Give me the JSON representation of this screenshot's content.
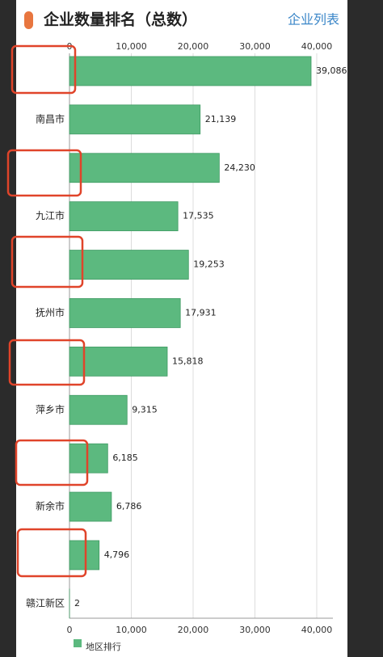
{
  "header_link": "企业列表",
  "chart_data": {
    "type": "hbar",
    "title": "企业数量排名（总数）",
    "categories": [
      null,
      "南昌市",
      null,
      "九江市",
      null,
      "抚州市",
      null,
      "萍乡市",
      null,
      "新余市",
      null,
      "赣江新区"
    ],
    "series": [
      {
        "name": "地区排行",
        "color": "#5cb97f",
        "values": [
          39086,
          21139,
          24230,
          17535,
          19253,
          17931,
          15818,
          9315,
          6185,
          6786,
          4796,
          2
        ],
        "value_labels": [
          "39,086",
          "21,139",
          "24,230",
          "17,535",
          "19,253",
          "17,931",
          "15,818",
          "9,315",
          "6,185",
          "6,786",
          "4,796",
          "2"
        ]
      }
    ],
    "xlim": [
      0,
      40000
    ],
    "xticks": [
      0,
      {
        "value": 10000,
        "label": "10,000"
      },
      {
        "value": 20000,
        "label": "20,000"
      },
      {
        "value": 30000,
        "label": "30,000"
      },
      {
        "value": 40000,
        "label": "40,000"
      }
    ],
    "grid": true,
    "legend": "bottom-left"
  }
}
